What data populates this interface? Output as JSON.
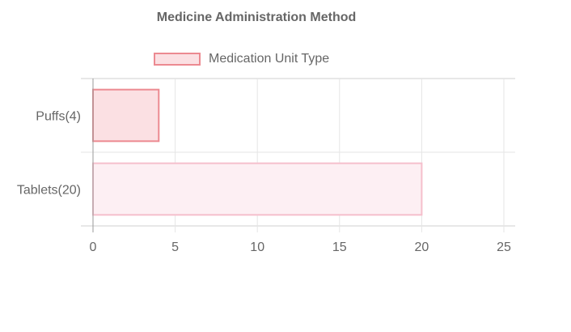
{
  "chart_data": {
    "type": "bar",
    "orientation": "horizontal",
    "title": "Medicine Administration Method",
    "categories": [
      "Puffs(4)",
      "Tablets(20)"
    ],
    "series": [
      {
        "name": "Medication Unit Type",
        "values": [
          4,
          20
        ],
        "fill_colors": [
          "#fbe0e3",
          "#fdeff3"
        ],
        "border_colors": [
          "#ec8a91",
          "#f5bfcc"
        ]
      }
    ],
    "xlim": [
      0,
      25
    ],
    "x_ticks": [
      "0",
      "5",
      "10",
      "15",
      "20",
      "25"
    ],
    "grid": true,
    "legend_position": "top"
  }
}
